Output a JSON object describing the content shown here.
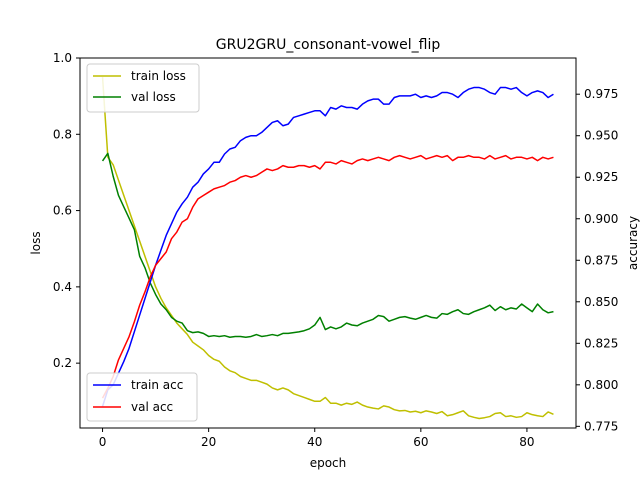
{
  "chart_data": {
    "type": "line",
    "title": "GRU2GRU_consonant-vowel_flip",
    "xlabel": "epoch",
    "ylabel": "loss",
    "ylabel_right": "accuracy",
    "xlim": [
      -4.25,
      89.25
    ],
    "ylim": [
      0.03,
      1.0
    ],
    "ylim_right": [
      0.774,
      0.9968
    ],
    "xticks": [
      0,
      20,
      40,
      60,
      80
    ],
    "yticks": [
      0.2,
      0.4,
      0.6,
      0.8,
      1.0
    ],
    "yticks_right": [
      0.775,
      0.8,
      0.825,
      0.85,
      0.875,
      0.9,
      0.925,
      0.95,
      0.975
    ],
    "grid": false,
    "legends": [
      {
        "placement": "upper-left",
        "axis": "left",
        "entries": [
          "train loss",
          "val loss"
        ]
      },
      {
        "placement": "lower-left",
        "axis": "right",
        "entries": [
          "train acc",
          "val acc"
        ]
      }
    ],
    "series": [
      {
        "name": "train loss",
        "axis": "left",
        "color": "#bfbf00",
        "x": [
          0,
          1,
          2,
          3,
          4,
          5,
          6,
          7,
          8,
          9,
          10,
          11,
          12,
          13,
          14,
          15,
          16,
          17,
          18,
          19,
          20,
          21,
          22,
          23,
          24,
          25,
          26,
          27,
          28,
          29,
          30,
          31,
          32,
          33,
          34,
          35,
          36,
          37,
          38,
          39,
          40,
          41,
          42,
          43,
          44,
          45,
          46,
          47,
          48,
          49,
          50,
          51,
          52,
          53,
          54,
          55,
          56,
          57,
          58,
          59,
          60,
          61,
          62,
          63,
          64,
          65,
          66,
          67,
          68,
          69,
          70,
          71,
          72,
          73,
          74,
          75,
          76,
          77,
          78,
          79,
          80,
          81,
          82,
          83,
          84,
          85
        ],
        "values": [
          0.95,
          0.74,
          0.72,
          0.68,
          0.64,
          0.6,
          0.56,
          0.52,
          0.48,
          0.44,
          0.4,
          0.37,
          0.345,
          0.325,
          0.305,
          0.29,
          0.275,
          0.255,
          0.245,
          0.235,
          0.22,
          0.21,
          0.205,
          0.19,
          0.18,
          0.175,
          0.165,
          0.16,
          0.155,
          0.155,
          0.15,
          0.145,
          0.135,
          0.13,
          0.135,
          0.13,
          0.12,
          0.115,
          0.11,
          0.105,
          0.1,
          0.1,
          0.11,
          0.095,
          0.095,
          0.09,
          0.095,
          0.092,
          0.098,
          0.09,
          0.085,
          0.082,
          0.08,
          0.088,
          0.085,
          0.078,
          0.075,
          0.076,
          0.072,
          0.074,
          0.07,
          0.075,
          0.072,
          0.068,
          0.073,
          0.062,
          0.065,
          0.07,
          0.075,
          0.062,
          0.058,
          0.055,
          0.057,
          0.06,
          0.068,
          0.07,
          0.06,
          0.062,
          0.058,
          0.06,
          0.07,
          0.065,
          0.062,
          0.06,
          0.072,
          0.066
        ]
      },
      {
        "name": "val loss",
        "axis": "left",
        "color": "#008000",
        "x": [
          0,
          1,
          2,
          3,
          4,
          5,
          6,
          7,
          8,
          9,
          10,
          11,
          12,
          13,
          14,
          15,
          16,
          17,
          18,
          19,
          20,
          21,
          22,
          23,
          24,
          25,
          26,
          27,
          28,
          29,
          30,
          31,
          32,
          33,
          34,
          35,
          36,
          37,
          38,
          39,
          40,
          41,
          42,
          43,
          44,
          45,
          46,
          47,
          48,
          49,
          50,
          51,
          52,
          53,
          54,
          55,
          56,
          57,
          58,
          59,
          60,
          61,
          62,
          63,
          64,
          65,
          66,
          67,
          68,
          69,
          70,
          71,
          72,
          73,
          74,
          75,
          76,
          77,
          78,
          79,
          80,
          81,
          82,
          83,
          84,
          85
        ],
        "values": [
          0.73,
          0.75,
          0.69,
          0.64,
          0.61,
          0.58,
          0.55,
          0.48,
          0.45,
          0.41,
          0.38,
          0.355,
          0.34,
          0.32,
          0.31,
          0.305,
          0.285,
          0.28,
          0.282,
          0.278,
          0.27,
          0.272,
          0.27,
          0.272,
          0.268,
          0.27,
          0.27,
          0.268,
          0.27,
          0.275,
          0.27,
          0.272,
          0.275,
          0.272,
          0.278,
          0.278,
          0.28,
          0.282,
          0.285,
          0.29,
          0.3,
          0.32,
          0.288,
          0.295,
          0.29,
          0.295,
          0.305,
          0.3,
          0.298,
          0.305,
          0.31,
          0.315,
          0.325,
          0.322,
          0.31,
          0.315,
          0.32,
          0.322,
          0.318,
          0.315,
          0.32,
          0.325,
          0.32,
          0.318,
          0.33,
          0.328,
          0.335,
          0.34,
          0.33,
          0.328,
          0.335,
          0.34,
          0.345,
          0.352,
          0.338,
          0.348,
          0.34,
          0.345,
          0.342,
          0.355,
          0.345,
          0.335,
          0.355,
          0.34,
          0.332,
          0.335
        ]
      },
      {
        "name": "train acc",
        "axis": "right",
        "color": "#0000ff",
        "x": [
          0,
          1,
          2,
          3,
          4,
          5,
          6,
          7,
          8,
          9,
          10,
          11,
          12,
          13,
          14,
          15,
          16,
          17,
          18,
          19,
          20,
          21,
          22,
          23,
          24,
          25,
          26,
          27,
          28,
          29,
          30,
          31,
          32,
          33,
          34,
          35,
          36,
          37,
          38,
          39,
          40,
          41,
          42,
          43,
          44,
          45,
          46,
          47,
          48,
          49,
          50,
          51,
          52,
          53,
          54,
          55,
          56,
          57,
          58,
          59,
          60,
          61,
          62,
          63,
          64,
          65,
          66,
          67,
          68,
          69,
          70,
          71,
          72,
          73,
          74,
          75,
          76,
          77,
          78,
          79,
          80,
          81,
          82,
          83,
          84,
          85
        ],
        "values": [
          0.787,
          0.797,
          0.8,
          0.807,
          0.814,
          0.822,
          0.832,
          0.842,
          0.852,
          0.862,
          0.872,
          0.881,
          0.89,
          0.897,
          0.904,
          0.909,
          0.913,
          0.919,
          0.922,
          0.927,
          0.93,
          0.934,
          0.934,
          0.939,
          0.942,
          0.943,
          0.947,
          0.949,
          0.95,
          0.95,
          0.952,
          0.955,
          0.958,
          0.959,
          0.956,
          0.957,
          0.961,
          0.962,
          0.963,
          0.964,
          0.965,
          0.965,
          0.962,
          0.967,
          0.966,
          0.968,
          0.967,
          0.967,
          0.966,
          0.969,
          0.971,
          0.972,
          0.972,
          0.969,
          0.969,
          0.973,
          0.974,
          0.974,
          0.974,
          0.975,
          0.973,
          0.974,
          0.973,
          0.974,
          0.976,
          0.976,
          0.975,
          0.973,
          0.976,
          0.978,
          0.979,
          0.979,
          0.978,
          0.976,
          0.975,
          0.979,
          0.979,
          0.978,
          0.979,
          0.976,
          0.974,
          0.976,
          0.977,
          0.976,
          0.973,
          0.975
        ]
      },
      {
        "name": "val acc",
        "axis": "right",
        "color": "#ff0000",
        "x": [
          0,
          1,
          2,
          3,
          4,
          5,
          6,
          7,
          8,
          9,
          10,
          11,
          12,
          13,
          14,
          15,
          16,
          17,
          18,
          19,
          20,
          21,
          22,
          23,
          24,
          25,
          26,
          27,
          28,
          29,
          30,
          31,
          32,
          33,
          34,
          35,
          36,
          37,
          38,
          39,
          40,
          41,
          42,
          43,
          44,
          45,
          46,
          47,
          48,
          49,
          50,
          51,
          52,
          53,
          54,
          55,
          56,
          57,
          58,
          59,
          60,
          61,
          62,
          63,
          64,
          65,
          66,
          67,
          68,
          69,
          70,
          71,
          72,
          73,
          74,
          75,
          76,
          77,
          78,
          79,
          80,
          81,
          82,
          83,
          84,
          85
        ],
        "values": [
          0.792,
          0.798,
          0.805,
          0.815,
          0.822,
          0.829,
          0.838,
          0.848,
          0.856,
          0.865,
          0.872,
          0.876,
          0.88,
          0.888,
          0.892,
          0.898,
          0.9,
          0.907,
          0.912,
          0.914,
          0.916,
          0.918,
          0.919,
          0.92,
          0.922,
          0.923,
          0.925,
          0.926,
          0.925,
          0.926,
          0.928,
          0.93,
          0.929,
          0.93,
          0.932,
          0.931,
          0.931,
          0.932,
          0.932,
          0.931,
          0.932,
          0.93,
          0.934,
          0.934,
          0.933,
          0.935,
          0.934,
          0.933,
          0.935,
          0.936,
          0.935,
          0.936,
          0.937,
          0.936,
          0.935,
          0.937,
          0.938,
          0.937,
          0.936,
          0.937,
          0.938,
          0.936,
          0.937,
          0.938,
          0.937,
          0.938,
          0.935,
          0.937,
          0.937,
          0.938,
          0.937,
          0.937,
          0.936,
          0.938,
          0.936,
          0.937,
          0.938,
          0.936,
          0.937,
          0.937,
          0.936,
          0.937,
          0.935,
          0.937,
          0.936,
          0.937
        ]
      }
    ]
  }
}
